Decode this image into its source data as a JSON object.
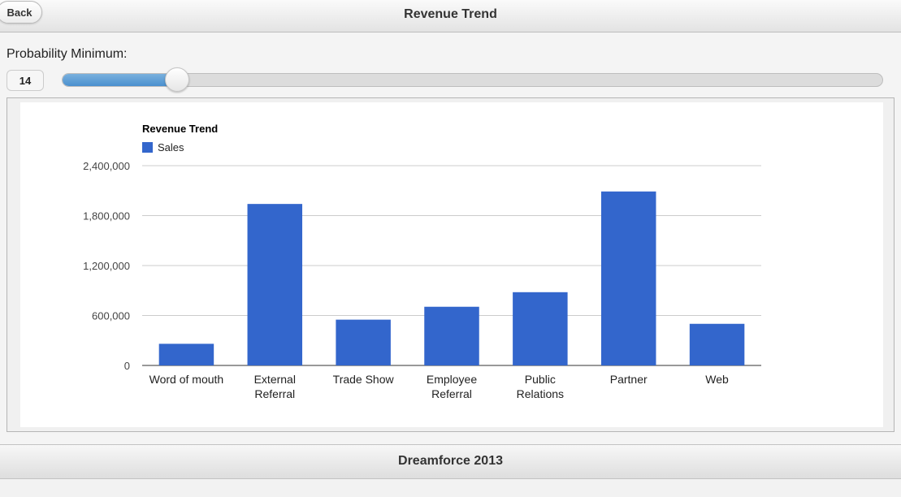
{
  "header": {
    "back_label": "Back",
    "title": "Revenue Trend"
  },
  "filter": {
    "label": "Probability Minimum:",
    "value": "14",
    "slider_percent": 14,
    "fill_color": "#4a90cf"
  },
  "chart_data": {
    "type": "bar",
    "title": "Revenue Trend",
    "categories": [
      "Word of mouth",
      "External Referral",
      "Trade Show",
      "Employee Referral",
      "Public Relations",
      "Partner",
      "Web"
    ],
    "series": [
      {
        "name": "Sales",
        "color": "#3366cc",
        "values": [
          260000,
          1940000,
          550000,
          705000,
          880000,
          2090000,
          500000
        ]
      }
    ],
    "ylim": [
      0,
      2400000
    ],
    "yticks": [
      "0",
      "600,000",
      "1,200,000",
      "1,800,000",
      "2,400,000"
    ],
    "xlabel": "",
    "ylabel": "",
    "grid": true,
    "legend_position": "top-left"
  },
  "footer": {
    "title": "Dreamforce 2013"
  }
}
